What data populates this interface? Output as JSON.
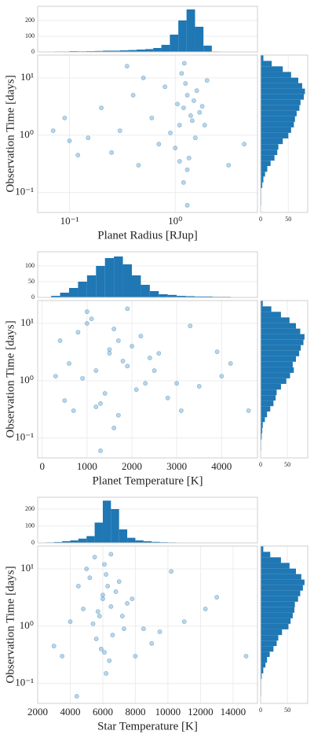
{
  "chart_data": [
    {
      "type": "scatter",
      "color": "#1f77b4",
      "grid": true,
      "xlog": true,
      "ylog": true,
      "xlabel": "Planet Radius [RJup]",
      "ylabel": "Observation Time [days]",
      "xlim": [
        0.05,
        6
      ],
      "ylim": [
        0.045,
        25
      ],
      "xticks": [
        {
          "value": 0.1,
          "label": "10⁻¹"
        },
        {
          "value": 1,
          "label": "10⁰"
        }
      ],
      "yticks": [
        {
          "value": 0.1,
          "label": "10⁻¹"
        },
        {
          "value": 1,
          "label": "10⁰"
        },
        {
          "value": 10,
          "label": "10¹"
        }
      ],
      "x": [
        1.2,
        1.3,
        1.1,
        1.4,
        1.25,
        1.0,
        1.5,
        1.35,
        0.9,
        1.6,
        1.15,
        1.3,
        1.45,
        1.05,
        1.7,
        0.8,
        0.6,
        0.4,
        0.3,
        0.2,
        0.15,
        0.1,
        0.07,
        0.09,
        0.25,
        0.5,
        0.7,
        1.9,
        2.0,
        4.5,
        3.2,
        1.2,
        1.3,
        0.35,
        1.22,
        1.1,
        0.45,
        1.55,
        0.12,
        1.8
      ],
      "y": [
        3,
        5,
        1.5,
        2.2,
        8,
        0.6,
        4,
        0.4,
        1.1,
        6,
        12,
        0.25,
        1.8,
        3.5,
        2.5,
        7,
        2,
        5,
        1.2,
        3,
        0.9,
        0.8,
        1.2,
        2,
        0.5,
        10,
        0.7,
        1.5,
        9,
        0.7,
        0.3,
        0.15,
        0.06,
        16,
        18,
        0.35,
        0.3,
        0.9,
        0.45,
        3.2
      ],
      "x_histogram": {
        "bins": [
          0.05,
          0.06,
          0.072,
          0.086,
          0.1,
          0.12,
          0.144,
          0.173,
          0.207,
          0.249,
          0.3,
          0.36,
          0.43,
          0.52,
          0.62,
          0.74,
          0.89,
          1.07,
          1.28,
          1.54,
          1.85,
          2.22,
          2.66
        ],
        "counts": [
          1,
          2,
          3,
          3,
          5,
          4,
          5,
          6,
          8,
          8,
          10,
          12,
          15,
          18,
          25,
          45,
          110,
          200,
          270,
          160,
          40,
          3
        ],
        "ylim": [
          0,
          290
        ],
        "yticks": [
          0,
          100,
          200
        ]
      },
      "y_histogram": {
        "bins": [
          0.06,
          0.075,
          0.094,
          0.12,
          0.15,
          0.19,
          0.23,
          0.29,
          0.36,
          0.45,
          0.56,
          0.7,
          0.88,
          1.1,
          1.37,
          1.71,
          2.14,
          2.67,
          3.34,
          4.17,
          5.2,
          6.5,
          8.1,
          10.1,
          12.7,
          15.9,
          19.8,
          24.8
        ],
        "counts": [
          1,
          1,
          1,
          3,
          5,
          8,
          12,
          18,
          25,
          30,
          32,
          40,
          50,
          55,
          60,
          62,
          65,
          70,
          72,
          78,
          80,
          75,
          68,
          55,
          40,
          20,
          5
        ],
        "xlim": [
          0,
          85
        ],
        "xticks": [
          0,
          50
        ]
      }
    },
    {
      "type": "scatter",
      "color": "#1f77b4",
      "grid": true,
      "xlog": false,
      "ylog": true,
      "xlabel": "Planet Temperature [K]",
      "ylabel": "Observation Time [days]",
      "xlim": [
        -100,
        4800
      ],
      "ylim": [
        0.045,
        25
      ],
      "xticks": [
        0,
        1000,
        2000,
        3000,
        4000
      ],
      "yticks": [
        {
          "value": 0.1,
          "label": "10⁻¹"
        },
        {
          "value": 1,
          "label": "10⁰"
        },
        {
          "value": 10,
          "label": "10¹"
        }
      ],
      "x": [
        1500,
        1700,
        1200,
        1800,
        1600,
        1400,
        2000,
        1300,
        900,
        2200,
        1100,
        1700,
        1900,
        1500,
        2400,
        800,
        600,
        400,
        300,
        2600,
        3000,
        3500,
        4000,
        4200,
        2800,
        1000,
        2100,
        2500,
        3300,
        4600,
        3100,
        1600,
        1300,
        1000,
        1900,
        1200,
        700,
        2300,
        500,
        3900
      ],
      "y": [
        3,
        5,
        1.5,
        2.2,
        8,
        0.6,
        4,
        0.4,
        1.1,
        6,
        12,
        0.25,
        1.8,
        3.5,
        2.5,
        7,
        2,
        5,
        1.2,
        3,
        0.9,
        0.8,
        1.2,
        2,
        0.5,
        10,
        0.7,
        1.5,
        9,
        0.3,
        0.3,
        0.15,
        0.06,
        16,
        18,
        0.35,
        0.3,
        0.9,
        0.45,
        3.2
      ],
      "x_histogram": {
        "bins": [
          200,
          400,
          600,
          800,
          1000,
          1200,
          1400,
          1600,
          1800,
          2000,
          2200,
          2400,
          2600,
          2800,
          3000,
          3200,
          3400,
          3600,
          3800,
          4000,
          4200,
          4400,
          4600
        ],
        "counts": [
          5,
          15,
          30,
          50,
          70,
          100,
          125,
          130,
          105,
          70,
          40,
          20,
          10,
          8,
          5,
          4,
          3,
          3,
          2,
          2,
          1,
          1
        ],
        "ylim": [
          0,
          145
        ],
        "yticks": [
          0,
          50,
          100
        ]
      },
      "y_histogram": {
        "bins": [
          0.06,
          0.075,
          0.094,
          0.12,
          0.15,
          0.19,
          0.23,
          0.29,
          0.36,
          0.45,
          0.56,
          0.7,
          0.88,
          1.1,
          1.37,
          1.71,
          2.14,
          2.67,
          3.34,
          4.17,
          5.2,
          6.5,
          8.1,
          10.1,
          12.7,
          15.9,
          19.8,
          24.8
        ],
        "counts": [
          1,
          1,
          2,
          3,
          4,
          8,
          12,
          18,
          24,
          28,
          30,
          38,
          48,
          55,
          62,
          60,
          66,
          72,
          75,
          80,
          82,
          74,
          66,
          54,
          38,
          20,
          4
        ],
        "xlim": [
          0,
          88
        ],
        "xticks": [
          0,
          50
        ]
      }
    },
    {
      "type": "scatter",
      "color": "#1f77b4",
      "grid": true,
      "xlog": false,
      "ylog": true,
      "xlabel": "Star Temperature [K]",
      "ylabel": "Observation Time [days]",
      "xlim": [
        2000,
        15500
      ],
      "ylim": [
        0.045,
        25
      ],
      "xticks": [
        2000,
        4000,
        6000,
        8000,
        10000,
        12000,
        14000
      ],
      "yticks": [
        {
          "value": 0.1,
          "label": "10⁻¹"
        },
        {
          "value": 1,
          "label": "10⁰"
        },
        {
          "value": 10,
          "label": "10¹"
        }
      ],
      "x": [
        6000,
        6300,
        5800,
        6500,
        6200,
        5600,
        6800,
        5900,
        5400,
        7000,
        6100,
        6400,
        5700,
        6000,
        7500,
        5200,
        4800,
        4500,
        4000,
        7800,
        8500,
        9500,
        11000,
        12300,
        9000,
        5000,
        6600,
        7200,
        10200,
        14800,
        8000,
        6200,
        4400,
        5500,
        6500,
        6100,
        3500,
        7300,
        3000,
        13000
      ],
      "y": [
        3,
        5,
        1.5,
        2.2,
        8,
        0.6,
        4,
        0.4,
        1.1,
        6,
        12,
        0.25,
        1.8,
        3.5,
        2.5,
        7,
        2,
        5,
        1.2,
        3,
        0.9,
        0.8,
        1.2,
        2,
        0.5,
        10,
        0.7,
        1.5,
        9,
        0.3,
        0.3,
        0.15,
        0.06,
        16,
        18,
        0.35,
        0.3,
        0.9,
        0.45,
        3.2
      ],
      "x_histogram": {
        "bins": [
          2500,
          3000,
          3500,
          4000,
          4500,
          5000,
          5500,
          6000,
          6500,
          7000,
          7500,
          8000,
          8500,
          9000,
          9500,
          10000,
          10500,
          11000,
          11500,
          12000,
          12500,
          13000,
          13500,
          14000,
          14500,
          15000
        ],
        "counts": [
          3,
          5,
          10,
          15,
          25,
          40,
          120,
          250,
          200,
          80,
          30,
          15,
          10,
          6,
          4,
          3,
          2,
          2,
          1,
          1,
          1,
          0,
          0,
          1,
          1
        ],
        "ylim": [
          0,
          270
        ],
        "yticks": [
          0,
          100,
          200
        ]
      },
      "y_histogram": {
        "bins": [
          0.06,
          0.075,
          0.094,
          0.12,
          0.15,
          0.19,
          0.23,
          0.29,
          0.36,
          0.45,
          0.56,
          0.7,
          0.88,
          1.1,
          1.37,
          1.71,
          2.14,
          2.67,
          3.34,
          4.17,
          5.2,
          6.5,
          8.1,
          10.1,
          12.7,
          15.9,
          19.8,
          24.8
        ],
        "counts": [
          1,
          1,
          1,
          2,
          5,
          9,
          12,
          17,
          24,
          30,
          33,
          40,
          52,
          56,
          60,
          63,
          64,
          70,
          74,
          79,
          82,
          76,
          66,
          54,
          38,
          18,
          5
        ],
        "xlim": [
          0,
          88
        ],
        "xticks": [
          0,
          50
        ]
      }
    }
  ]
}
